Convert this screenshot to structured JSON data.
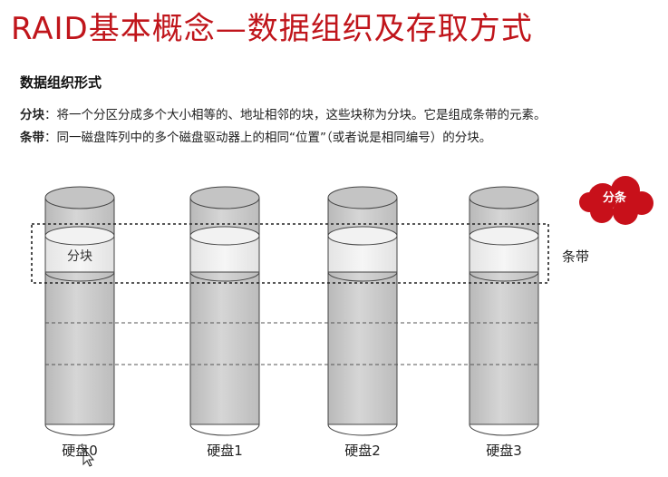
{
  "slide": {
    "title": "RAID基本概念—数据组织及存取方式",
    "section_heading": "数据组织形式",
    "definitions": [
      {
        "term": "分块",
        "text": "：将一个分区分成多个大小相等的、地址相邻的块，这些块称为分块。它是组成条带的元素。"
      },
      {
        "term": "条带",
        "text": "：同一磁盘阵列中的多个磁盘驱动器上的相同“位置”（或者说是相同编号）的分块。"
      }
    ]
  },
  "diagram": {
    "disks": [
      {
        "label": "硬盘0"
      },
      {
        "label": "硬盘1"
      },
      {
        "label": "硬盘2"
      },
      {
        "label": "硬盘3"
      }
    ],
    "chunk_label": "分块",
    "stripe_label": "条带",
    "cloud_badge": "分条",
    "colors": {
      "title": "#c0151b",
      "cloud": "#c8101a",
      "disk_body": "#cdcdcd",
      "chunk": "#ececec"
    }
  }
}
